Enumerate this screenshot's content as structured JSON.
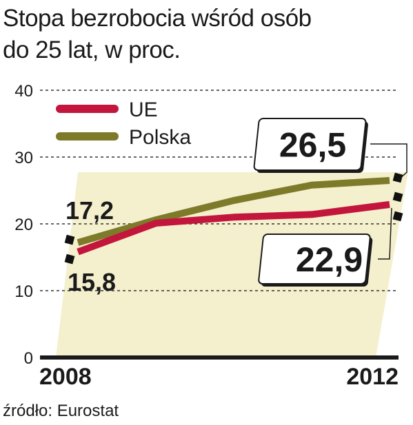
{
  "title_lines": [
    "Stopa bezrobocia wśród osób",
    "do 25 lat, w proc."
  ],
  "source": "źródło: Eurostat",
  "colors": {
    "UE": "#c3163c",
    "Polska": "#7d7a2a",
    "band": "#f4f0cd"
  },
  "chart_data": {
    "type": "line",
    "x": [
      2008,
      2009,
      2010,
      2011,
      2012
    ],
    "xtick_labels": [
      "2008",
      "2012"
    ],
    "ylim": [
      0,
      40
    ],
    "yticks": [
      0,
      10,
      20,
      30,
      40
    ],
    "grid": true,
    "legend_position": "top-left",
    "series": [
      {
        "name": "UE",
        "values": [
          15.8,
          20.1,
          21.0,
          21.4,
          22.9
        ],
        "start_label": "15,8",
        "end_label": "22,9"
      },
      {
        "name": "Polska",
        "values": [
          17.2,
          20.6,
          23.5,
          25.8,
          26.5
        ],
        "start_label": "17,2",
        "end_label": "26,5"
      }
    ]
  }
}
